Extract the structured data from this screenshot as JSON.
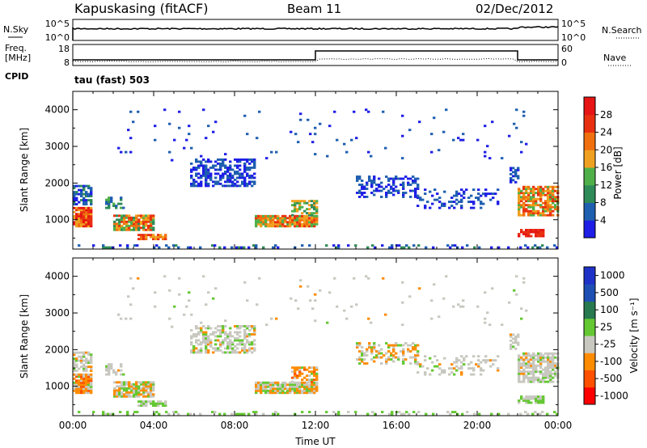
{
  "header": {
    "station": "Kapuskasing (fitACF)",
    "beam": "Beam 11",
    "date": "02/Dec/2012"
  },
  "noise_panel": {
    "left_label": "N.Sky",
    "right_label": "N.Search",
    "y_ticks": [
      "10^5",
      "10^0"
    ],
    "right_ticks": [
      "10^5",
      "10^0"
    ]
  },
  "freq_panel": {
    "left_label_1": "Freq.",
    "left_label_2": "[MHz]",
    "right_label": "Nave",
    "left_ticks": [
      "18",
      "8"
    ],
    "right_ticks": [
      "60",
      "0"
    ],
    "cpid_label": "CPID",
    "cpid_value": "tau (fast) 503"
  },
  "colors": {
    "power": [
      "#1e1ee6",
      "#1f5fb0",
      "#2e8b57",
      "#4fb04a",
      "#f0a020",
      "#f07010",
      "#e83010",
      "#e61414"
    ],
    "velocity": [
      "#ff0000",
      "#ff5000",
      "#ff8c00",
      "#c8c8c0",
      "#64c832",
      "#287850",
      "#1e50b4",
      "#1e32c8"
    ]
  },
  "chart_data": [
    {
      "type": "heatmap",
      "name": "power",
      "ylabel": "Slant Range [km]",
      "ylim": [
        200,
        4500
      ],
      "x_ticks": [
        "00:00",
        "04:00",
        "08:00",
        "12:00",
        "16:00",
        "20:00",
        "00:00"
      ],
      "y_ticks": [
        "1000",
        "2000",
        "3000",
        "4000"
      ],
      "colorbar": {
        "label": "Power [dB]",
        "ticks": [
          "4",
          "8",
          "12",
          "16",
          "20",
          "24",
          "28"
        ],
        "range": [
          0,
          32
        ]
      }
    },
    {
      "type": "heatmap",
      "name": "velocity",
      "ylabel": "Slant Range [km]",
      "xlabel": "Time UT",
      "ylim": [
        200,
        4500
      ],
      "x_ticks": [
        "00:00",
        "04:00",
        "08:00",
        "12:00",
        "16:00",
        "20:00",
        "00:00"
      ],
      "y_ticks": [
        "1000",
        "2000",
        "3000",
        "4000"
      ],
      "colorbar": {
        "label": "Velocity [m s⁻¹]",
        "ticks": [
          "1000",
          "500",
          "100",
          "25",
          "-25",
          "-100",
          "-500",
          "-1000"
        ]
      }
    }
  ]
}
